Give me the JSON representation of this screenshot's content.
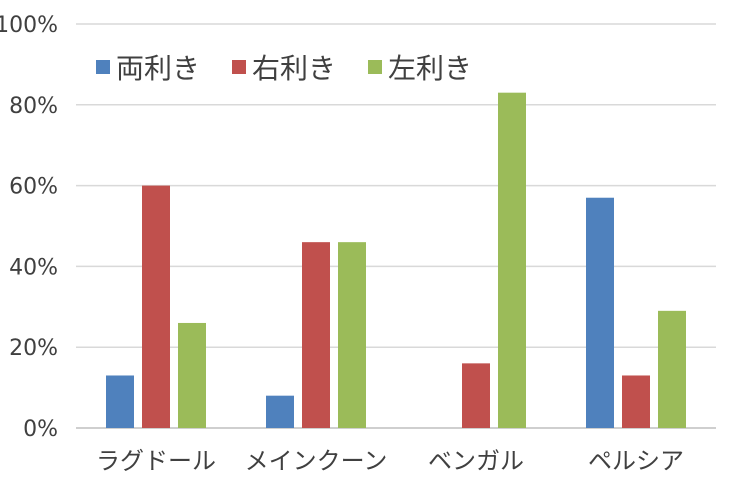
{
  "chart_data": {
    "type": "bar",
    "categories": [
      "ラグドール",
      "メインクーン",
      "ベンガル",
      "ペルシア"
    ],
    "series": [
      {
        "name": "両利き",
        "values": [
          13,
          8,
          0,
          57
        ],
        "color": "#4F81BD"
      },
      {
        "name": "右利き",
        "values": [
          60,
          46,
          16,
          13
        ],
        "color": "#C0504D"
      },
      {
        "name": "左利き",
        "values": [
          26,
          46,
          83,
          29
        ],
        "color": "#9BBB59"
      }
    ],
    "y_ticks": [
      "0%",
      "20%",
      "40%",
      "60%",
      "80%",
      "100%"
    ],
    "ylim": [
      0,
      100
    ],
    "grid": true,
    "legend_position": "top-left",
    "gridline_color": "#D9D9D9",
    "axis_color": "#BFBFBF"
  }
}
